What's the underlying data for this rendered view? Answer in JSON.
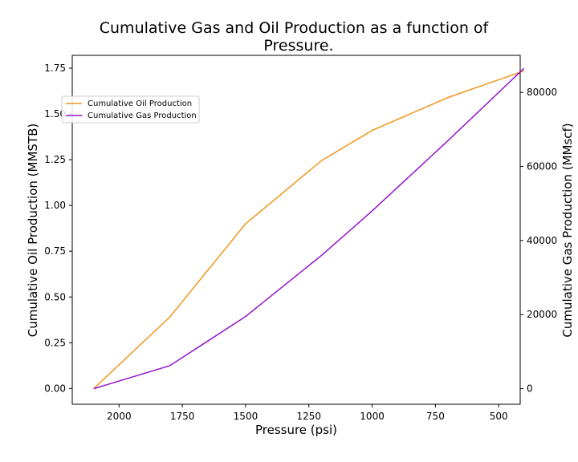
{
  "chart_data": {
    "type": "line",
    "title_line1": "Cumulative Gas and Oil Production as a function of",
    "title_line2": "Pressure.",
    "xlabel": "Pressure (psi)",
    "ylabel_left": "Cumulative Oil Production (MMSTB)",
    "ylabel_right": "Cumulative Gas Production (MMscf)",
    "x_ticks": [
      "2000",
      "1750",
      "1500",
      "1250",
      "1000",
      "750",
      "500"
    ],
    "x_tick_values": [
      2000,
      1750,
      1500,
      1250,
      1000,
      750,
      500
    ],
    "y_left_ticks": [
      "0.00",
      "0.25",
      "0.50",
      "0.75",
      "1.00",
      "1.25",
      "1.50",
      "1.75"
    ],
    "y_left_tick_values": [
      0,
      0.25,
      0.5,
      0.75,
      1.0,
      1.25,
      1.5,
      1.75
    ],
    "y_right_ticks": [
      "0",
      "20000",
      "40000",
      "60000",
      "80000"
    ],
    "y_right_tick_values": [
      0,
      20000,
      40000,
      60000,
      80000
    ],
    "xlim": [
      2185,
      415
    ],
    "ylim_left": [
      -0.086,
      1.82
    ],
    "ylim_right": [
      -4200,
      90000
    ],
    "x_reversed": true,
    "grid": false,
    "legend_position": "upper left",
    "series": [
      {
        "name": "Cumulative Oil Production",
        "axis": "left",
        "color": "#f0961e",
        "x": [
          2100,
          1800,
          1500,
          1200,
          1000,
          700,
          400
        ],
        "y": [
          0.0,
          0.39,
          0.9,
          1.245,
          1.41,
          1.59,
          1.735
        ]
      },
      {
        "name": "Cumulative Gas Production",
        "axis": "right",
        "color": "#9414c8",
        "x": [
          2100,
          1800,
          1500,
          1200,
          1000,
          700,
          400
        ],
        "y": [
          0,
          6200,
          19500,
          36000,
          48000,
          67000,
          86500
        ]
      }
    ]
  }
}
